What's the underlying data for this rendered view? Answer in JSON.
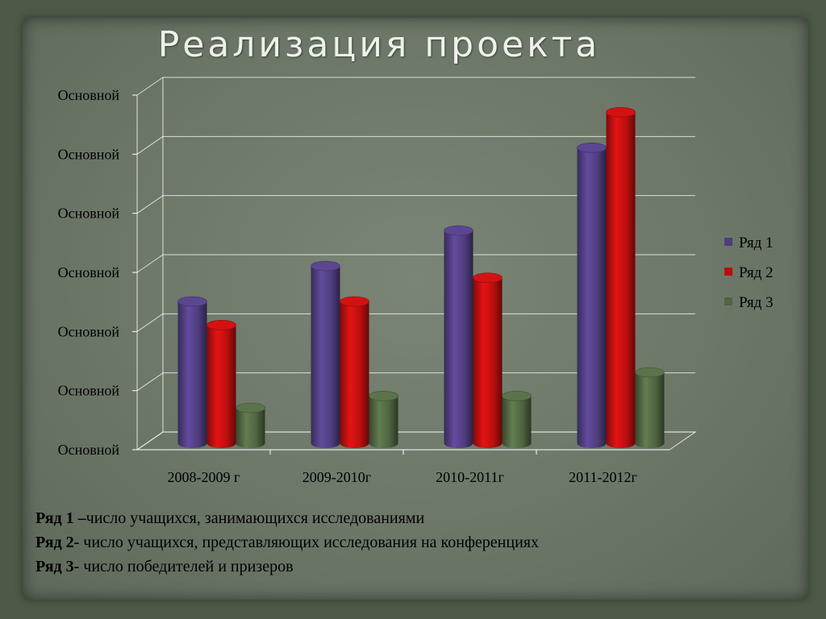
{
  "slide": {
    "title": "Реализация  проекта"
  },
  "chart_data": {
    "type": "bar",
    "categories": [
      "2008-2009 г",
      "2009-2010г",
      "2010-2011г",
      "2011-2012г"
    ],
    "series": [
      {
        "name": "Ряд 1",
        "color": "#4f3d7e",
        "values": [
          2.4,
          3.0,
          3.6,
          5.0
        ]
      },
      {
        "name": "Ряд 2",
        "color": "#b80f0f",
        "values": [
          2.0,
          2.4,
          2.8,
          5.6
        ]
      },
      {
        "name": "Ряд 3",
        "color": "#4f6440",
        "values": [
          0.6,
          0.8,
          0.8,
          1.2
        ]
      }
    ],
    "yticks": [
      "Основной",
      "Основной",
      "Основной",
      "Основной",
      "Основной",
      "Основной",
      "Основной"
    ],
    "ylim": [
      0,
      6
    ],
    "grid": true,
    "legend": "right"
  },
  "notes": [
    {
      "label": "Ряд 1 –",
      "text": "число учащихся, занимающихся исследованиями"
    },
    {
      "label": "Ряд 2-",
      "text": " число учащихся, представляющих  исследования на конференциях"
    },
    {
      "label": "Ряд 3-",
      "text": " число победителей и призеров"
    }
  ]
}
